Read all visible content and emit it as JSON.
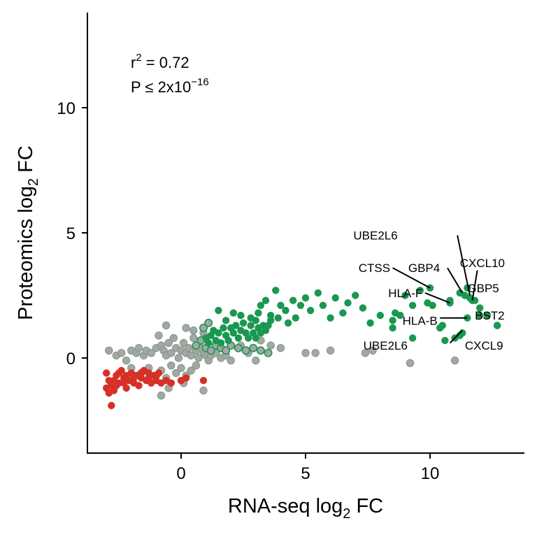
{
  "chart_data": {
    "type": "scatter",
    "xlabel": "RNA-seq log",
    "xlabel_sub": "2",
    "xlabel_suffix": " FC",
    "ylabel": "Proteomics log",
    "ylabel_sub": "2",
    "ylabel_suffix": " FC",
    "xlim": [
      -3.8,
      13.8
    ],
    "ylim": [
      -3.8,
      13.8
    ],
    "x_ticks": [
      0,
      5,
      10
    ],
    "y_ticks": [
      0,
      5,
      10
    ],
    "x_tick_labels": [
      "0",
      "5",
      "10"
    ],
    "y_tick_labels": [
      "0",
      "5",
      "10"
    ],
    "grid": false,
    "legend": "none",
    "colors": {
      "up": "#1a9850",
      "down": "#d73027",
      "ns": "#a6a6a6"
    },
    "annotation": {
      "r_label": "r",
      "r_sup": "2",
      "r_value": " = 0.72",
      "p_label": "P ≤ 2x10",
      "p_sup": "−16"
    },
    "series": [
      {
        "group": "up",
        "points": [
          [
            3.8,
            2.7
          ],
          [
            4.0,
            2.1
          ],
          [
            4.2,
            1.9
          ],
          [
            4.5,
            2.3
          ],
          [
            4.8,
            2.1
          ],
          [
            5.0,
            2.4
          ],
          [
            5.2,
            1.9
          ],
          [
            5.5,
            2.6
          ],
          [
            5.7,
            2.1
          ],
          [
            6.0,
            1.6
          ],
          [
            6.2,
            2.4
          ],
          [
            6.5,
            1.8
          ],
          [
            6.7,
            2.2
          ],
          [
            7.0,
            2.5
          ],
          [
            7.3,
            2.0
          ],
          [
            7.6,
            1.4
          ],
          [
            8.0,
            1.7
          ],
          [
            8.5,
            1.5
          ],
          [
            8.6,
            1.8
          ],
          [
            8.8,
            1.7
          ],
          [
            9.0,
            2.5
          ],
          [
            9.3,
            2.1
          ],
          [
            9.6,
            2.7
          ],
          [
            9.9,
            2.2
          ],
          [
            10.1,
            2.1
          ],
          [
            10.4,
            1.2
          ],
          [
            10.5,
            1.3
          ],
          [
            10.8,
            2.3
          ],
          [
            11.2,
            2.6
          ],
          [
            11.6,
            2.4
          ],
          [
            11.8,
            2.3
          ],
          [
            12.0,
            2.0
          ],
          [
            12.3,
            1.7
          ],
          [
            12.7,
            1.3
          ],
          [
            8.5,
            1.2
          ],
          [
            9.3,
            0.8
          ],
          [
            10.6,
            0.7
          ],
          [
            11.2,
            0.9
          ],
          [
            10.0,
            2.8
          ],
          [
            10.8,
            2.2
          ],
          [
            11.4,
            2.5
          ],
          [
            11.5,
            2.8
          ],
          [
            11.7,
            2.3
          ],
          [
            11.5,
            1.6
          ],
          [
            12.0,
            1.7
          ],
          [
            11.0,
            0.8
          ],
          [
            11.3,
            1.0
          ],
          [
            12.7,
            1.3
          ],
          [
            1.5,
            1.9
          ],
          [
            1.8,
            1.5
          ],
          [
            2.1,
            1.8
          ],
          [
            2.4,
            1.7
          ],
          [
            2.8,
            1.6
          ],
          [
            3.1,
            1.8
          ],
          [
            3.4,
            2.3
          ],
          [
            3.6,
            1.7
          ],
          [
            3.2,
            2.1
          ],
          [
            3.6,
            1.5
          ],
          [
            3.9,
            1.6
          ],
          [
            4.3,
            1.4
          ],
          [
            4.6,
            1.6
          ],
          [
            1.0,
            0.8
          ],
          [
            1.2,
            0.9
          ],
          [
            1.3,
            1.1
          ],
          [
            1.5,
            1.0
          ],
          [
            1.7,
            1.2
          ],
          [
            1.8,
            0.9
          ],
          [
            2.0,
            1.2
          ],
          [
            2.1,
            1.0
          ],
          [
            2.2,
            1.3
          ],
          [
            2.4,
            1.1
          ],
          [
            2.5,
            1.4
          ],
          [
            2.6,
            1.0
          ],
          [
            2.8,
            1.3
          ],
          [
            2.9,
            1.0
          ],
          [
            3.0,
            1.5
          ],
          [
            3.1,
            1.2
          ],
          [
            3.2,
            1.0
          ],
          [
            3.3,
            1.3
          ],
          [
            3.4,
            1.1
          ],
          [
            3.5,
            1.3
          ],
          [
            1.1,
            0.6
          ],
          [
            1.4,
            0.7
          ],
          [
            1.6,
            0.6
          ],
          [
            1.9,
            0.7
          ],
          [
            2.3,
            0.8
          ],
          [
            2.7,
            0.8
          ],
          [
            3.0,
            0.8
          ]
        ]
      },
      {
        "group": "up_outlined",
        "points": [
          [
            0.6,
            0.5
          ],
          [
            0.8,
            0.7
          ],
          [
            1.0,
            0.4
          ],
          [
            1.2,
            0.3
          ],
          [
            1.4,
            0.5
          ],
          [
            1.6,
            0.4
          ],
          [
            1.8,
            0.3
          ],
          [
            2.0,
            0.5
          ],
          [
            2.3,
            0.4
          ],
          [
            2.6,
            0.3
          ],
          [
            2.9,
            0.4
          ],
          [
            3.2,
            0.3
          ],
          [
            3.5,
            0.2
          ],
          [
            1.1,
            1.4
          ],
          [
            0.9,
            1.2
          ]
        ]
      },
      {
        "group": "ns",
        "points": [
          [
            -2.9,
            0.3
          ],
          [
            -2.6,
            0.1
          ],
          [
            -2.4,
            0.2
          ],
          [
            -2.2,
            -0.1
          ],
          [
            -2.0,
            0.3
          ],
          [
            -1.8,
            0.2
          ],
          [
            -1.7,
            0.4
          ],
          [
            -1.5,
            0.1
          ],
          [
            -1.4,
            0.3
          ],
          [
            -1.2,
            0.2
          ],
          [
            -1.0,
            0.4
          ],
          [
            -0.8,
            0.5
          ],
          [
            -0.7,
            0.3
          ],
          [
            -0.6,
            0.1
          ],
          [
            -0.5,
            0.6
          ],
          [
            -0.4,
            0.2
          ],
          [
            -0.3,
            0.8
          ],
          [
            -0.2,
            0.4
          ],
          [
            -0.1,
            0.0
          ],
          [
            0.0,
            0.3
          ],
          [
            0.1,
            0.6
          ],
          [
            0.2,
            0.2
          ],
          [
            0.3,
            0.4
          ],
          [
            0.4,
            0.1
          ],
          [
            0.5,
            0.8
          ],
          [
            0.6,
            0.3
          ],
          [
            0.7,
            0.0
          ],
          [
            0.8,
            0.4
          ],
          [
            0.9,
            0.2
          ],
          [
            1.0,
            0.1
          ],
          [
            1.1,
            -0.1
          ],
          [
            1.2,
            0.1
          ],
          [
            1.4,
            0.2
          ],
          [
            1.6,
            0.0
          ],
          [
            1.8,
            0.1
          ],
          [
            2.0,
            -0.1
          ],
          [
            -2.0,
            -0.4
          ],
          [
            -1.6,
            -0.6
          ],
          [
            -1.3,
            -0.4
          ],
          [
            -1.0,
            -0.7
          ],
          [
            -0.8,
            -0.5
          ],
          [
            -0.6,
            -0.8
          ],
          [
            -0.4,
            -0.3
          ],
          [
            -0.2,
            -0.6
          ],
          [
            0.0,
            -0.4
          ],
          [
            0.2,
            -0.7
          ],
          [
            0.4,
            -0.5
          ],
          [
            0.6,
            -0.3
          ],
          [
            -0.6,
            1.3
          ],
          [
            0.2,
            1.2
          ],
          [
            0.5,
            1.1
          ],
          [
            -0.9,
            0.9
          ],
          [
            0.9,
            1.0
          ],
          [
            -0.8,
            -1.5
          ],
          [
            -0.5,
            -1.2
          ],
          [
            0.1,
            -1.0
          ],
          [
            0.9,
            -1.3
          ],
          [
            3.2,
            0.7
          ],
          [
            3.6,
            0.5
          ],
          [
            4.0,
            0.4
          ],
          [
            5.0,
            0.2
          ],
          [
            5.4,
            0.2
          ],
          [
            6.0,
            0.3
          ],
          [
            7.4,
            0.2
          ],
          [
            7.7,
            0.3
          ],
          [
            9.2,
            -0.2
          ],
          [
            11.0,
            -0.1
          ],
          [
            2.4,
            0.5
          ],
          [
            2.7,
            0.2
          ],
          [
            3.0,
            -0.1
          ]
        ]
      },
      {
        "group": "down",
        "points": [
          [
            -3.0,
            -0.6
          ],
          [
            -2.9,
            -0.9
          ],
          [
            -2.8,
            -1.1
          ],
          [
            -2.7,
            -1.3
          ],
          [
            -2.6,
            -0.7
          ],
          [
            -2.5,
            -1.0
          ],
          [
            -2.4,
            -0.5
          ],
          [
            -2.3,
            -0.8
          ],
          [
            -2.2,
            -1.2
          ],
          [
            -2.1,
            -0.9
          ],
          [
            -2.0,
            -0.6
          ],
          [
            -1.9,
            -1.0
          ],
          [
            -1.8,
            -0.7
          ],
          [
            -1.7,
            -1.1
          ],
          [
            -1.6,
            -0.8
          ],
          [
            -1.5,
            -0.5
          ],
          [
            -1.4,
            -0.9
          ],
          [
            -1.3,
            -0.6
          ],
          [
            -1.2,
            -1.0
          ],
          [
            -1.1,
            -0.7
          ],
          [
            -1.0,
            -0.9
          ],
          [
            -0.9,
            -0.6
          ],
          [
            -0.8,
            -1.0
          ],
          [
            -2.8,
            -1.9
          ],
          [
            -2.9,
            -1.4
          ],
          [
            -2.6,
            -1.1
          ],
          [
            -2.3,
            -1.0
          ],
          [
            -0.6,
            -0.9
          ],
          [
            -0.4,
            -1.0
          ],
          [
            0.0,
            -0.9
          ],
          [
            0.2,
            -0.8
          ],
          [
            0.9,
            -0.9
          ],
          [
            -3.0,
            -1.2
          ],
          [
            -2.7,
            -0.9
          ],
          [
            -2.5,
            -0.6
          ],
          [
            -2.2,
            -0.7
          ],
          [
            -1.9,
            -0.8
          ],
          [
            -1.6,
            -0.6
          ],
          [
            -1.3,
            -0.8
          ],
          [
            -1.0,
            -0.7
          ]
        ]
      }
    ],
    "labels": [
      {
        "text": "UBE2L6",
        "x": 8.7,
        "y": 4.9,
        "anchor": "end",
        "lx1": 11.1,
        "ly1": 4.9,
        "lx2": 11.6,
        "ly2": 2.5
      },
      {
        "text": "CXCL10",
        "x": 11.2,
        "y": 3.8,
        "anchor": "start",
        "lx1": 11.9,
        "ly1": 3.5,
        "lx2": 11.7,
        "ly2": 2.3
      },
      {
        "text": "GBP4",
        "x": 10.4,
        "y": 3.6,
        "anchor": "end",
        "lx1": 10.7,
        "ly1": 3.6,
        "lx2": 11.3,
        "ly2": 2.6
      },
      {
        "text": "CTSS",
        "x": 8.4,
        "y": 3.6,
        "anchor": "end",
        "lx1": 8.5,
        "ly1": 3.6,
        "lx2": 10.0,
        "ly2": 2.8
      },
      {
        "text": "GBP5",
        "x": 11.5,
        "y": 2.8,
        "anchor": "start",
        "lx1": 11.6,
        "ly1": 2.8,
        "lx2": 11.5,
        "ly2": 2.8
      },
      {
        "text": "HLA-F",
        "x": 9.7,
        "y": 2.6,
        "anchor": "end",
        "lx1": 9.8,
        "ly1": 2.6,
        "lx2": 10.8,
        "ly2": 2.2
      },
      {
        "text": "HLA-B",
        "x": 10.3,
        "y": 1.5,
        "anchor": "end",
        "lx1": 10.4,
        "ly1": 1.6,
        "lx2": 11.5,
        "ly2": 1.6
      },
      {
        "text": "BST2",
        "x": 11.8,
        "y": 1.7,
        "anchor": "start",
        "lx1": 11.8,
        "ly1": 1.7,
        "lx2": 11.8,
        "ly2": 1.7
      },
      {
        "text": "UBE2L6",
        "x": 9.1,
        "y": 0.5,
        "anchor": "end",
        "lx1": 10.8,
        "ly1": 0.6,
        "lx2": 11.3,
        "ly2": 1.1
      },
      {
        "text": "CXCL9",
        "x": 11.4,
        "y": 0.5,
        "anchor": "start",
        "lx1": 11.4,
        "ly1": 0.5,
        "lx2": 11.4,
        "ly2": 0.5
      }
    ]
  }
}
